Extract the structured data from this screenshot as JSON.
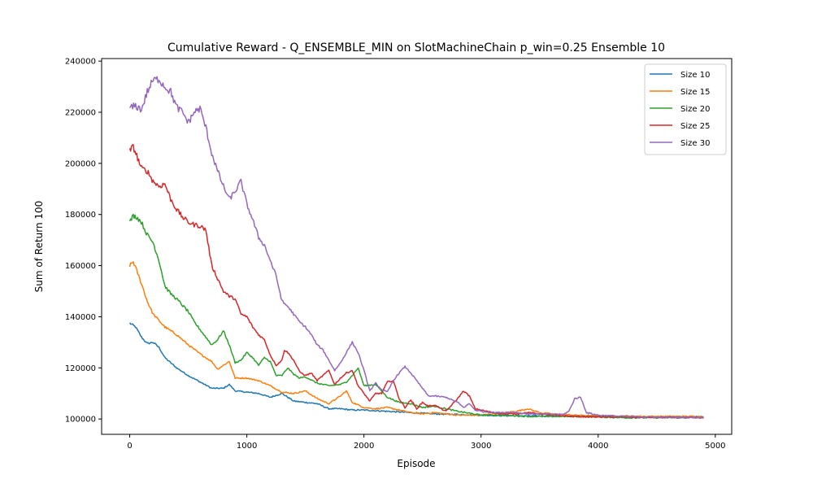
{
  "chart_data": {
    "type": "line",
    "title": "Cumulative Reward - Q_ENSEMBLE_MIN on SlotMachineChain p_win=0.25 Ensemble 10",
    "xlabel": "Episode",
    "ylabel": "Sum of Return 100",
    "xlim": [
      -240,
      5140
    ],
    "ylim": [
      94000,
      241000
    ],
    "xticks": [
      0,
      1000,
      2000,
      3000,
      4000,
      5000
    ],
    "xtick_labels": [
      "0",
      "1000",
      "2000",
      "3000",
      "4000",
      "5000"
    ],
    "yticks": [
      100000,
      120000,
      140000,
      160000,
      180000,
      200000,
      220000,
      240000
    ],
    "ytick_labels": [
      "100000",
      "120000",
      "140000",
      "160000",
      "180000",
      "200000",
      "220000",
      "240000"
    ],
    "grid": false,
    "legend_position": "top-right",
    "series": [
      {
        "name": "Size 10",
        "color": "#1f77b4",
        "x": [
          0,
          50,
          100,
          150,
          200,
          250,
          300,
          400,
          500,
          600,
          700,
          800,
          850,
          900,
          1000,
          1100,
          1200,
          1300,
          1400,
          1500,
          1600,
          1700,
          1800,
          1900,
          2000,
          2200,
          2400,
          2600,
          2800,
          3000,
          3200,
          3400,
          3600,
          3800,
          4000,
          4200,
          4400,
          4600,
          4800,
          4900
        ],
        "y": [
          137500,
          136000,
          132000,
          129500,
          130000,
          128000,
          124000,
          120000,
          117000,
          114500,
          112000,
          112000,
          113500,
          111000,
          110500,
          110000,
          108500,
          110000,
          107000,
          106500,
          106000,
          104000,
          104000,
          103500,
          103500,
          103000,
          102500,
          102000,
          101800,
          101500,
          101300,
          101200,
          101100,
          101000,
          101000,
          100800,
          100800,
          100800,
          100800,
          100800
        ]
      },
      {
        "name": "Size 15",
        "color": "#ff7f0e",
        "x": [
          0,
          30,
          60,
          100,
          150,
          200,
          300,
          400,
          500,
          600,
          700,
          750,
          800,
          850,
          900,
          1000,
          1100,
          1200,
          1300,
          1400,
          1500,
          1600,
          1700,
          1800,
          1850,
          1900,
          2000,
          2100,
          2200,
          2300,
          2400,
          2500,
          2600,
          2800,
          3000,
          3200,
          3300,
          3400,
          3500,
          3600,
          3800,
          4000,
          4200,
          4400,
          4600,
          4800,
          4900
        ],
        "y": [
          160000,
          161500,
          158000,
          153000,
          146000,
          141000,
          136000,
          133000,
          129000,
          125500,
          122500,
          119500,
          121000,
          122500,
          116000,
          116000,
          115000,
          113000,
          110500,
          110000,
          111000,
          108000,
          106000,
          109000,
          111000,
          106500,
          104500,
          104000,
          104500,
          103500,
          102500,
          102000,
          102500,
          101500,
          101500,
          102500,
          103000,
          104000,
          102500,
          102000,
          101500,
          101200,
          101200,
          101000,
          101000,
          101000,
          101000
        ]
      },
      {
        "name": "Size 20",
        "color": "#2ca02c",
        "x": [
          0,
          30,
          60,
          100,
          150,
          200,
          250,
          300,
          350,
          400,
          500,
          550,
          600,
          650,
          700,
          750,
          800,
          850,
          900,
          950,
          1000,
          1050,
          1100,
          1150,
          1200,
          1250,
          1300,
          1350,
          1400,
          1450,
          1500,
          1600,
          1700,
          1800,
          1850,
          1900,
          1950,
          2000,
          2100,
          2200,
          2300,
          2400,
          2500,
          2600,
          2700,
          2800,
          3000,
          3200,
          3400,
          3600,
          3800,
          4000,
          4200,
          4400,
          4600,
          4800,
          4900
        ],
        "y": [
          177000,
          179500,
          179000,
          177000,
          172000,
          169000,
          162000,
          152000,
          149000,
          147000,
          142000,
          138000,
          135000,
          132000,
          129000,
          131000,
          134500,
          129000,
          122000,
          123000,
          126000,
          124000,
          121000,
          124000,
          122500,
          117000,
          117000,
          120000,
          117500,
          116000,
          116500,
          114000,
          113000,
          113500,
          114500,
          117000,
          120000,
          113000,
          113500,
          108500,
          106500,
          106000,
          104500,
          105000,
          104000,
          103000,
          101500,
          101500,
          101000,
          101000,
          101000,
          100800,
          100500,
          100500,
          100500,
          100500,
          100500
        ]
      },
      {
        "name": "Size 25",
        "color": "#d62728",
        "x": [
          0,
          30,
          60,
          100,
          150,
          200,
          250,
          300,
          350,
          400,
          450,
          500,
          550,
          600,
          650,
          700,
          750,
          800,
          850,
          900,
          950,
          1000,
          1050,
          1100,
          1150,
          1200,
          1250,
          1300,
          1320,
          1350,
          1400,
          1450,
          1500,
          1550,
          1600,
          1650,
          1700,
          1750,
          1800,
          1850,
          1900,
          1950,
          2000,
          2050,
          2100,
          2150,
          2200,
          2250,
          2300,
          2350,
          2400,
          2450,
          2500,
          2550,
          2600,
          2700,
          2800,
          2850,
          2900,
          2950,
          3000,
          3100,
          3200,
          3300,
          3400,
          3500,
          3600,
          3800,
          4000,
          4200,
          4400,
          4600,
          4800,
          4900
        ],
        "y": [
          205000,
          206500,
          203000,
          198000,
          197000,
          193000,
          191000,
          192000,
          186000,
          182000,
          179000,
          177000,
          176000,
          175500,
          174000,
          160000,
          155000,
          150000,
          148000,
          147000,
          141000,
          140000,
          136000,
          133000,
          131000,
          125000,
          121000,
          123000,
          127000,
          126000,
          123000,
          118500,
          117000,
          118000,
          115000,
          117000,
          119000,
          113500,
          116000,
          118000,
          119000,
          113000,
          110000,
          107000,
          110000,
          110000,
          114500,
          115000,
          108000,
          104500,
          107500,
          104000,
          106500,
          105000,
          105500,
          103000,
          108000,
          111000,
          109000,
          104000,
          103500,
          102500,
          102000,
          102000,
          102500,
          102000,
          101500,
          101000,
          100800,
          100800,
          100600,
          100600,
          100500,
          100500
        ]
      },
      {
        "name": "Size 30",
        "color": "#9467bd",
        "x": [
          0,
          50,
          100,
          150,
          200,
          250,
          300,
          350,
          400,
          450,
          500,
          550,
          600,
          650,
          700,
          750,
          800,
          850,
          900,
          950,
          1000,
          1050,
          1100,
          1150,
          1200,
          1250,
          1300,
          1350,
          1400,
          1450,
          1500,
          1550,
          1600,
          1650,
          1700,
          1750,
          1800,
          1850,
          1900,
          1950,
          2000,
          2050,
          2100,
          2150,
          2200,
          2250,
          2300,
          2350,
          2400,
          2450,
          2500,
          2550,
          2600,
          2700,
          2800,
          2850,
          2900,
          2950,
          3000,
          3100,
          3200,
          3300,
          3400,
          3500,
          3600,
          3700,
          3750,
          3800,
          3850,
          3900,
          4000,
          4200,
          4400,
          4600,
          4800,
          4900
        ],
        "y": [
          221500,
          222500,
          221000,
          228000,
          232500,
          233000,
          230000,
          228000,
          222000,
          220000,
          216000,
          220000,
          221500,
          214000,
          204000,
          197000,
          191000,
          186000,
          189000,
          193000,
          184000,
          178000,
          171000,
          168000,
          162000,
          156000,
          146000,
          144000,
          141000,
          138000,
          136000,
          133000,
          129000,
          127000,
          123000,
          119000,
          122000,
          126000,
          130000,
          126000,
          119000,
          111000,
          114000,
          111500,
          110500,
          115000,
          118000,
          120500,
          118000,
          115000,
          112000,
          109000,
          109000,
          108500,
          106500,
          104500,
          106000,
          103500,
          103000,
          102500,
          102500,
          102500,
          102000,
          102000,
          101800,
          101800,
          103000,
          108000,
          108500,
          102500,
          101500,
          101000,
          100800,
          100600,
          100600,
          100500
        ]
      }
    ]
  }
}
